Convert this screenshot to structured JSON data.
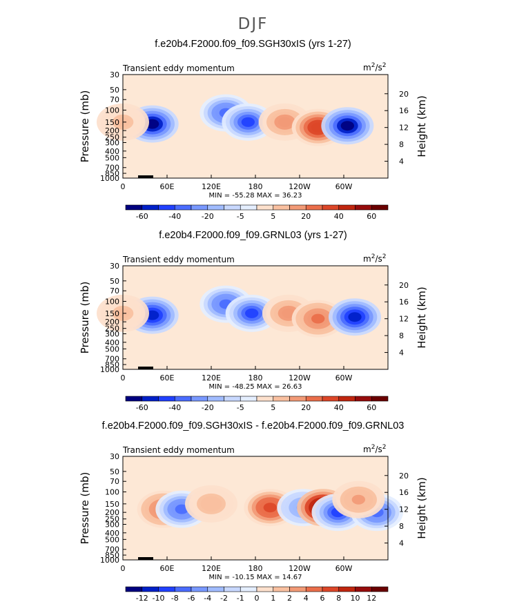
{
  "figure_title": "DJF",
  "chart_data": [
    {
      "type": "heatmap",
      "title": "f.e20b4.F2000.f09_f09.SGH30xIS (yrs 1-27)",
      "subtitle_left": "Transient eddy momentum",
      "units": "m²/s²",
      "units_base": "m",
      "units_exp1": "2",
      "units_mid": "/s",
      "units_exp2": "2",
      "ylabel": "Pressure (mb)",
      "ylabel_right": "Height (km)",
      "x_ticks": [
        "0",
        "60E",
        "120E",
        "180",
        "120W",
        "60W"
      ],
      "y_ticks": [
        "30",
        "50",
        "70",
        "100",
        "150",
        "200",
        "250",
        "300",
        "400",
        "500",
        "700",
        "850",
        "1000"
      ],
      "y_ticks_right": [
        "20",
        "16",
        "12",
        "8",
        "4"
      ],
      "stats": "MIN = -55.28   MAX =  36.23",
      "colorbar_labels": [
        "-60",
        "-40",
        "-20",
        "-5",
        "5",
        "20",
        "40",
        "60"
      ],
      "cells": [
        {
          "lon": 40,
          "p": 160,
          "v": -55
        },
        {
          "lon": 140,
          "p": 110,
          "v": -35
        },
        {
          "lon": 170,
          "p": 150,
          "v": -40
        },
        {
          "lon": 220,
          "p": 150,
          "v": 20
        },
        {
          "lon": 265,
          "p": 180,
          "v": 36
        },
        {
          "lon": 305,
          "p": 170,
          "v": -55
        },
        {
          "lon": 0,
          "p": 150,
          "v": 10
        }
      ]
    },
    {
      "type": "heatmap",
      "title": "f.e20b4.F2000.f09_f09.GRNL03 (yrs 1-27)",
      "subtitle_left": "Transient eddy momentum",
      "units": "m²/s²",
      "units_base": "m",
      "units_exp1": "2",
      "units_mid": "/s",
      "units_exp2": "2",
      "ylabel": "Pressure (mb)",
      "ylabel_right": "Height (km)",
      "x_ticks": [
        "0",
        "60E",
        "120E",
        "180",
        "120W",
        "60W"
      ],
      "y_ticks": [
        "30",
        "50",
        "70",
        "100",
        "150",
        "200",
        "250",
        "300",
        "400",
        "500",
        "700",
        "850",
        "1000"
      ],
      "y_ticks_right": [
        "20",
        "16",
        "12",
        "8",
        "4"
      ],
      "stats": "MIN = -48.25   MAX =  26.63",
      "colorbar_labels": [
        "-60",
        "-40",
        "-20",
        "-5",
        "5",
        "20",
        "40",
        "60"
      ],
      "cells": [
        {
          "lon": 40,
          "p": 160,
          "v": -48
        },
        {
          "lon": 140,
          "p": 110,
          "v": -35
        },
        {
          "lon": 175,
          "p": 150,
          "v": -40
        },
        {
          "lon": 225,
          "p": 150,
          "v": 20
        },
        {
          "lon": 265,
          "p": 180,
          "v": 26
        },
        {
          "lon": 315,
          "p": 170,
          "v": -45
        },
        {
          "lon": 0,
          "p": 150,
          "v": 10
        }
      ]
    },
    {
      "type": "heatmap",
      "title": "f.e20b4.F2000.f09_f09.SGH30xIS - f.e20b4.F2000.f09_f09.GRNL03",
      "subtitle_left": "Transient eddy momentum",
      "units": "m²/s²",
      "units_base": "m",
      "units_exp1": "2",
      "units_mid": "/s",
      "units_exp2": "2",
      "ylabel": "Pressure (mb)",
      "ylabel_right": "Height (km)",
      "x_ticks": [
        "0",
        "60E",
        "120E",
        "180",
        "120W",
        "60W"
      ],
      "y_ticks": [
        "30",
        "50",
        "70",
        "100",
        "150",
        "200",
        "250",
        "300",
        "400",
        "500",
        "700",
        "850",
        "1000"
      ],
      "y_ticks_right": [
        "20",
        "16",
        "12",
        "8",
        "4"
      ],
      "stats": "MIN = -10.15   MAX =  14.67",
      "colorbar_labels": [
        "-12",
        "-10",
        "-8",
        "-6",
        "-4",
        "-2",
        "-1",
        "0",
        "1",
        "2",
        "4",
        "6",
        "8",
        "10",
        "12"
      ],
      "cells": [
        {
          "lon": 55,
          "p": 180,
          "v": 6
        },
        {
          "lon": 80,
          "p": 180,
          "v": -8
        },
        {
          "lon": 120,
          "p": 150,
          "v": 3
        },
        {
          "lon": 200,
          "p": 170,
          "v": 8
        },
        {
          "lon": 245,
          "p": 170,
          "v": -6
        },
        {
          "lon": 272,
          "p": 170,
          "v": 14
        },
        {
          "lon": 292,
          "p": 200,
          "v": -10
        },
        {
          "lon": 345,
          "p": 200,
          "v": -8
        },
        {
          "lon": 320,
          "p": 130,
          "v": 4
        }
      ]
    }
  ]
}
